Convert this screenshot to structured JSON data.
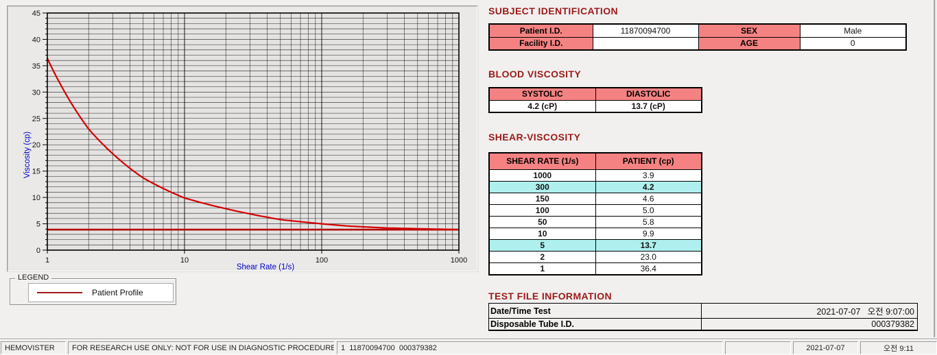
{
  "chart_data": {
    "type": "line",
    "title": "",
    "xlabel": "Shear Rate (1/s)",
    "ylabel": "Viscosity (cp)",
    "x_scale": "log",
    "xlim": [
      1,
      1000
    ],
    "ylim": [
      0,
      45
    ],
    "x_ticks": [
      1,
      10,
      100,
      1000
    ],
    "y_major_step": 5,
    "y_minor_step": 1,
    "grid": true,
    "axis_label_color": "#0000cc",
    "series": [
      {
        "name": "Patient Profile",
        "color": "#d40000",
        "x": [
          1,
          2,
          5,
          10,
          50,
          100,
          150,
          300,
          1000
        ],
        "y": [
          36.4,
          23.0,
          13.7,
          9.9,
          5.8,
          5.0,
          4.6,
          4.2,
          3.9
        ]
      }
    ],
    "reference_line": {
      "y": 3.9,
      "color": "#b30000"
    },
    "legend": {
      "position": "below-left",
      "box_label": "LEGEND",
      "entries": [
        {
          "label": "Patient Profile",
          "color": "#a01818"
        }
      ]
    }
  },
  "subject_identification": {
    "title": "SUBJECT IDENTIFICATION",
    "fields": [
      {
        "label": "Patient I.D.",
        "value": "11870094700"
      },
      {
        "label": "SEX",
        "value": "Male"
      },
      {
        "label": "Facility I.D.",
        "value": ""
      },
      {
        "label": "AGE",
        "value": "0"
      }
    ]
  },
  "blood_viscosity": {
    "title": "BLOOD VISCOSITY",
    "columns": [
      "SYSTOLIC",
      "DIASTOLIC"
    ],
    "values": [
      "4.2 (cP)",
      "13.7 (cP)"
    ]
  },
  "shear_viscosity": {
    "title": "SHEAR-VISCOSITY",
    "columns": [
      "SHEAR RATE (1/s)",
      "PATIENT (cp)"
    ],
    "rows": [
      {
        "shear_rate": "1000",
        "patient": "3.9",
        "highlight": false
      },
      {
        "shear_rate": "300",
        "patient": "4.2",
        "highlight": true
      },
      {
        "shear_rate": "150",
        "patient": "4.6",
        "highlight": false
      },
      {
        "shear_rate": "100",
        "patient": "5.0",
        "highlight": false
      },
      {
        "shear_rate": "50",
        "patient": "5.8",
        "highlight": false
      },
      {
        "shear_rate": "10",
        "patient": "9.9",
        "highlight": false
      },
      {
        "shear_rate": "5",
        "patient": "13.7",
        "highlight": true
      },
      {
        "shear_rate": "2",
        "patient": "23.0",
        "highlight": false
      },
      {
        "shear_rate": "1",
        "patient": "36.4",
        "highlight": false
      }
    ]
  },
  "test_file_information": {
    "title": "TEST FILE INFORMATION",
    "rows": [
      {
        "label": "Date/Time Test",
        "value": "2021-07-07   오전 9:07:00"
      },
      {
        "label": "Disposable Tube I.D.",
        "value": "000379382"
      }
    ]
  },
  "status_bar": {
    "items": [
      "HEMOVISTER",
      "FOR RESEARCH USE ONLY: NOT FOR USE IN DIAGNOSTIC PROCEDURES",
      "1  11870094700  000379382",
      "",
      "2021-07-07",
      "오전 9:11"
    ]
  },
  "colors": {
    "section_title": "#9c1a1a",
    "table_header_bg": "#f58282",
    "highlight_bg": "#aff0ee",
    "curve": "#d40000",
    "axis_label": "#0000cc"
  }
}
